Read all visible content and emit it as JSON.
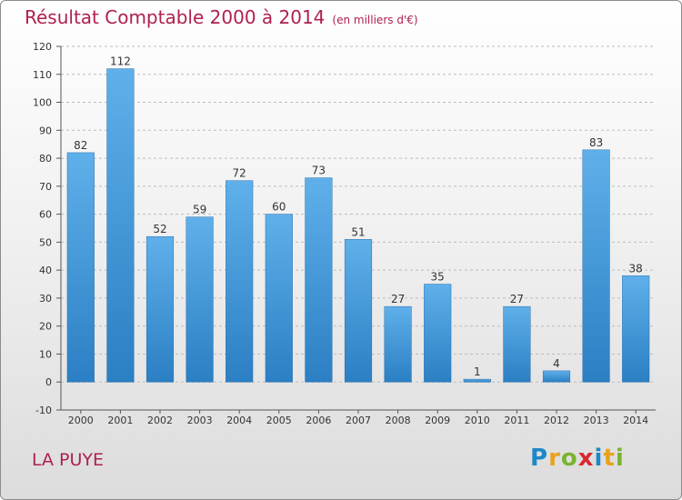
{
  "header": {
    "title": "Résultat Comptable 2000 à 2014",
    "subtitle": "(en milliers d'€)"
  },
  "commune": "LA PUYE",
  "logo": "Proxiti",
  "colors": {
    "bar": "#3f97d8",
    "title": "#b0204d",
    "grid": "#bdbdbd"
  },
  "chart_data": {
    "type": "bar",
    "title": "Résultat Comptable 2000 à 2014",
    "subtitle": "(en milliers d'€)",
    "categories": [
      "2000",
      "2001",
      "2002",
      "2003",
      "2004",
      "2005",
      "2006",
      "2007",
      "2008",
      "2009",
      "2010",
      "2011",
      "2012",
      "2013",
      "2014"
    ],
    "values": [
      82,
      112,
      52,
      59,
      72,
      60,
      73,
      51,
      27,
      35,
      1,
      27,
      4,
      83,
      38
    ],
    "ylim": [
      -10,
      120
    ],
    "yticks": [
      -10,
      0,
      10,
      20,
      30,
      40,
      50,
      60,
      70,
      80,
      90,
      100,
      110,
      120
    ],
    "grid": true,
    "xlabel": "",
    "ylabel": ""
  }
}
